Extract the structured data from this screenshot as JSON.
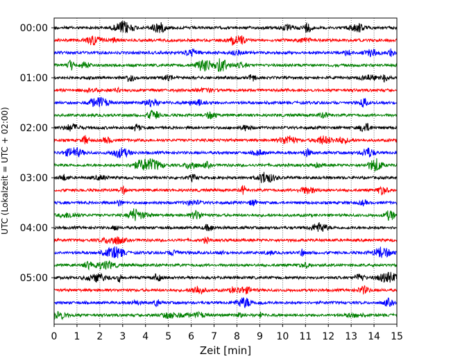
{
  "chart_data": {
    "type": "line",
    "title": "",
    "xlabel": "Zeit  [min]",
    "ylabel": "UTC (Lokalzeit = UTC + 02:00)",
    "xlim": [
      0,
      15
    ],
    "x_ticks": [
      "0",
      "1",
      "2",
      "3",
      "4",
      "5",
      "6",
      "7",
      "8",
      "9",
      "10",
      "11",
      "12",
      "13",
      "14",
      "15"
    ],
    "y_tick_labels": [
      "00:00",
      "01:00",
      "02:00",
      "03:00",
      "04:00",
      "05:00"
    ],
    "grid": "vertical-dotted",
    "legend": "none",
    "trace_interval_minutes": 15,
    "trace_count": 24,
    "trace_colors": [
      "#000000",
      "#ff0000",
      "#0000ff",
      "#008000"
    ],
    "traces": [
      {
        "start": "00:00",
        "color": "#000000"
      },
      {
        "start": "00:15",
        "color": "#ff0000"
      },
      {
        "start": "00:30",
        "color": "#0000ff"
      },
      {
        "start": "00:45",
        "color": "#008000"
      },
      {
        "start": "01:00",
        "color": "#000000"
      },
      {
        "start": "01:15",
        "color": "#ff0000"
      },
      {
        "start": "01:30",
        "color": "#0000ff"
      },
      {
        "start": "01:45",
        "color": "#008000"
      },
      {
        "start": "02:00",
        "color": "#000000"
      },
      {
        "start": "02:15",
        "color": "#ff0000"
      },
      {
        "start": "02:30",
        "color": "#0000ff"
      },
      {
        "start": "02:45",
        "color": "#008000"
      },
      {
        "start": "03:00",
        "color": "#000000"
      },
      {
        "start": "03:15",
        "color": "#ff0000"
      },
      {
        "start": "03:30",
        "color": "#0000ff"
      },
      {
        "start": "03:45",
        "color": "#008000"
      },
      {
        "start": "04:00",
        "color": "#000000"
      },
      {
        "start": "04:15",
        "color": "#ff0000"
      },
      {
        "start": "04:30",
        "color": "#0000ff"
      },
      {
        "start": "04:45",
        "color": "#008000"
      },
      {
        "start": "05:00",
        "color": "#000000"
      },
      {
        "start": "05:15",
        "color": "#ff0000"
      },
      {
        "start": "05:30",
        "color": "#0000ff"
      },
      {
        "start": "05:45",
        "color": "#008000"
      }
    ]
  }
}
